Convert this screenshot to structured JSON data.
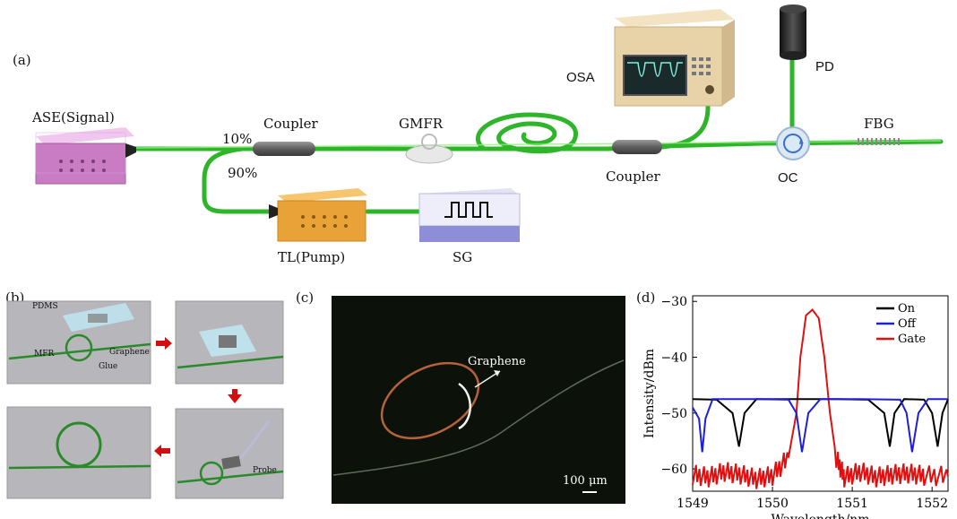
{
  "panels": {
    "a": "(a)",
    "b": "(b)",
    "c": "(c)",
    "d": "(d)"
  },
  "setup": {
    "ase": "ASE(Signal)",
    "coupler1": "Coupler",
    "split10": "10%",
    "split90": "90%",
    "gmfr": "GMFR",
    "osa": "OSA",
    "pd": "PD",
    "fbg": "FBG",
    "coupler2": "Coupler",
    "oc": "OC",
    "tl": "TL(Pump)",
    "sg": "SG"
  },
  "fab": {
    "pdms": "PDMS",
    "graphene": "Graphene",
    "mfr": "MFR",
    "glue": "Glue",
    "probe": "Probe"
  },
  "micro": {
    "graphene": "Graphene",
    "scale": "100 μm"
  },
  "chart_data": {
    "type": "line",
    "xlabel": "Wavelength/nm",
    "ylabel": "Intensity/dBm",
    "xlim": [
      1549,
      1552.2
    ],
    "ylim": [
      -64,
      -29
    ],
    "xticks": [
      1549,
      1550,
      1551,
      1552
    ],
    "yticks": [
      -30,
      -40,
      -50,
      -60
    ],
    "xtick_labels": [
      "1549",
      "1550",
      "1551",
      "1552"
    ],
    "ytick_labels": [
      "−30",
      "−40",
      "−50",
      "−60"
    ],
    "legend_position": "top-right",
    "series": [
      {
        "name": "On",
        "color": "#000000",
        "x": [
          1549.0,
          1549.3,
          1549.5,
          1549.58,
          1549.65,
          1549.8,
          1550.0,
          1550.4,
          1550.8,
          1551.2,
          1551.4,
          1551.47,
          1551.53,
          1551.65,
          1551.9,
          1552.0,
          1552.07,
          1552.13,
          1552.2
        ],
        "y": [
          -47.5,
          -47.6,
          -50,
          -56,
          -50,
          -47.5,
          -47.5,
          -47.5,
          -47.5,
          -47.6,
          -50,
          -56,
          -50,
          -47.5,
          -47.6,
          -50,
          -56,
          -50,
          -47.5
        ]
      },
      {
        "name": "Off",
        "color": "#1f1fd6",
        "x": [
          1549.0,
          1549.08,
          1549.12,
          1549.16,
          1549.25,
          1549.8,
          1550.2,
          1550.3,
          1550.37,
          1550.45,
          1550.6,
          1551.1,
          1551.6,
          1551.68,
          1551.75,
          1551.83,
          1551.95,
          1552.2
        ],
        "y": [
          -49,
          -51,
          -57,
          -51,
          -47.5,
          -47.5,
          -47.6,
          -50,
          -57,
          -50,
          -47.5,
          -47.5,
          -47.6,
          -50,
          -57,
          -50,
          -47.5,
          -47.5
        ]
      },
      {
        "name": "Gate",
        "color": "#e01010",
        "x": [
          1549.0,
          1549.2,
          1549.4,
          1549.6,
          1549.8,
          1550.0,
          1550.2,
          1550.3,
          1550.35,
          1550.42,
          1550.5,
          1550.58,
          1550.65,
          1550.72,
          1550.8,
          1550.9,
          1551.1,
          1551.3,
          1551.5,
          1551.7,
          1551.9,
          1552.2
        ],
        "y": [
          -61,
          -61.5,
          -60.5,
          -61,
          -61.8,
          -61.2,
          -58,
          -50,
          -40,
          -32.5,
          -31.5,
          -33,
          -40,
          -50,
          -58,
          -61.5,
          -60.5,
          -61.5,
          -61,
          -60.8,
          -61.2,
          -61.3
        ]
      }
    ]
  }
}
